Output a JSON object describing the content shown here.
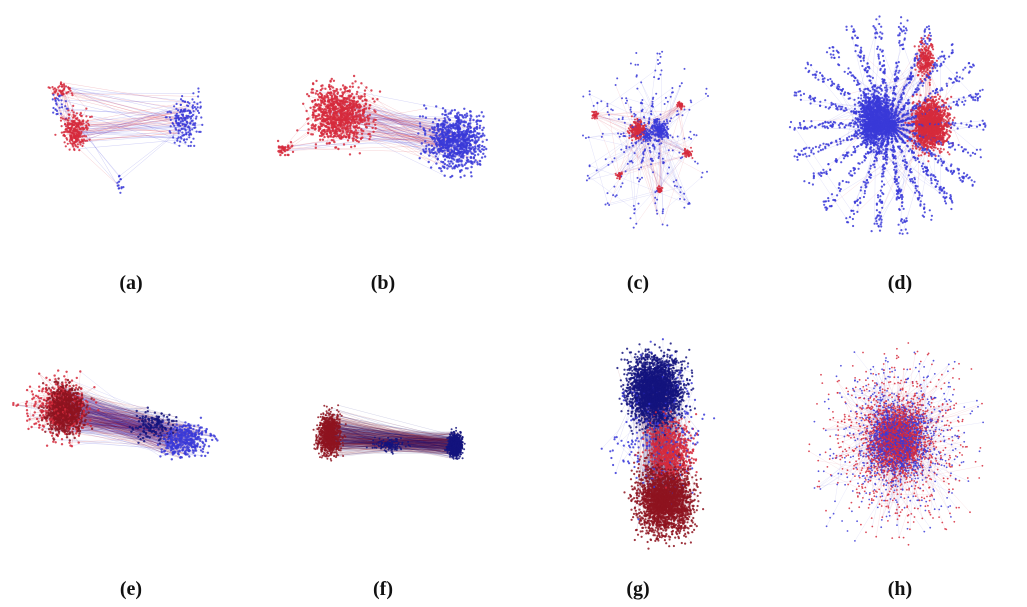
{
  "colors": {
    "red": "#d62a3c",
    "blue": "#3a3ad8",
    "dark_red": "#8e1420",
    "dark_blue": "#14147e"
  },
  "panels": [
    {
      "id": "a",
      "caption": "(a)",
      "style": "two-clusters-sparse"
    },
    {
      "id": "b",
      "caption": "(b)",
      "style": "two-clusters-dense"
    },
    {
      "id": "c",
      "caption": "(c)",
      "style": "radial-mixed"
    },
    {
      "id": "d",
      "caption": "(d)",
      "style": "large-radial"
    },
    {
      "id": "e",
      "caption": "(e)",
      "style": "dark-two-clusters"
    },
    {
      "id": "f",
      "caption": "(f)",
      "style": "dark-bridge"
    },
    {
      "id": "g",
      "caption": "(g)",
      "style": "dark-stacked"
    },
    {
      "id": "h",
      "caption": "(h)",
      "style": "mixed-hairball"
    }
  ]
}
